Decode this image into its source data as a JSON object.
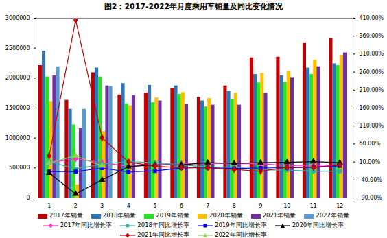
{
  "chart_data": {
    "type": "bar",
    "title": "图2：2017-2022年月度乘用车销量及同比变化情况",
    "categories": [
      "1",
      "2",
      "3",
      "4",
      "5",
      "6",
      "7",
      "8",
      "9",
      "10",
      "11",
      "12"
    ],
    "ylim": [
      0,
      3000000
    ],
    "yticks": [
      0,
      500000,
      1000000,
      1500000,
      2000000,
      2500000,
      3000000
    ],
    "y2lim": [
      -90,
      410
    ],
    "y2ticks": [
      {
        "value": -90,
        "label": "-90.00%"
      },
      {
        "value": -40,
        "label": "-40.00%"
      },
      {
        "value": 10,
        "label": "10.00%"
      },
      {
        "value": 60,
        "label": "60.00%"
      },
      {
        "value": 110,
        "label": "110.00%"
      },
      {
        "value": 160,
        "label": "160.00%"
      },
      {
        "value": 210,
        "label": "210.00%"
      },
      {
        "value": 260,
        "label": "260.00%"
      },
      {
        "value": 310,
        "label": "310.00%"
      },
      {
        "value": 360,
        "label": "360.00%"
      },
      {
        "value": 410,
        "label": "410.00%"
      }
    ],
    "legend": "bottom",
    "series": [
      {
        "name": "2017年销量",
        "type": "bar",
        "color": "#c00000",
        "values": [
          2210000,
          1630000,
          2090000,
          1720000,
          1750000,
          1830000,
          1680000,
          1870000,
          2340000,
          2350000,
          2590000,
          2660000
        ]
      },
      {
        "name": "2018年销量",
        "type": "bar",
        "color": "#2e75b6",
        "values": [
          2450000,
          1480000,
          2170000,
          1910000,
          1880000,
          1870000,
          1620000,
          1780000,
          2060000,
          2040000,
          2170000,
          2240000
        ]
      },
      {
        "name": "2019年销量",
        "type": "bar",
        "color": "#22e622",
        "values": [
          2020000,
          1220000,
          2020000,
          1570000,
          1590000,
          1730000,
          1520000,
          1650000,
          1920000,
          1930000,
          2060000,
          2210000
        ]
      },
      {
        "name": "2020年销量",
        "type": "bar",
        "color": "#ffc000",
        "values": [
          1610000,
          220000,
          1110000,
          1540000,
          1670000,
          1760000,
          1660000,
          1750000,
          2080000,
          2110000,
          2300000,
          2380000
        ]
      },
      {
        "name": "2021年销量",
        "type": "bar",
        "color": "#7030a0",
        "values": [
          2040000,
          1160000,
          1870000,
          1710000,
          1620000,
          1560000,
          1550000,
          1550000,
          1750000,
          2010000,
          2190000,
          2420000
        ]
      },
      {
        "name": "2022年销量",
        "type": "bar",
        "color": "#5b9bd5",
        "values": [
          2190000,
          1480000,
          1860000,
          null,
          null,
          null,
          null,
          null,
          null,
          null,
          null,
          null
        ]
      },
      {
        "name": "2017年同比增长率",
        "type": "line",
        "axis": "y2",
        "color": "#ff33cc",
        "marker": "diamond",
        "values": [
          8,
          19,
          8,
          -2,
          2,
          5,
          6,
          5,
          5,
          0,
          1,
          2
        ]
      },
      {
        "name": "2018年同比增长率",
        "type": "line",
        "axis": "y2",
        "color": "#2fb2a0",
        "marker": "circle",
        "values": [
          11,
          -9,
          4,
          11,
          8,
          2,
          -4,
          -5,
          -12,
          -13,
          -16,
          -16
        ]
      },
      {
        "name": "2019年同比增长率",
        "type": "line",
        "axis": "y2",
        "color": "#0000ff",
        "marker": "square",
        "values": [
          -17,
          -17,
          -7,
          -18,
          -15,
          -7,
          -6,
          -8,
          -7,
          -6,
          -5,
          -1
        ]
      },
      {
        "name": "2020年同比增长率",
        "type": "line",
        "axis": "y2",
        "color": "#000000",
        "marker": "triangle",
        "values": [
          -21,
          -79,
          -40,
          -3,
          2,
          2,
          8,
          6,
          8,
          9,
          11,
          8
        ]
      },
      {
        "name": "2021年同比增长率",
        "type": "line",
        "axis": "y2",
        "color": "#c00000",
        "marker": "diamond",
        "values": [
          27,
          405,
          77,
          10,
          -2,
          -6,
          -6,
          -11,
          -16,
          -5,
          -5,
          2
        ]
      },
      {
        "name": "2022年同比增长率",
        "type": "line",
        "axis": "y2",
        "color": "#92d050",
        "marker": "triangle",
        "values": [
          7,
          27,
          -1,
          null,
          null,
          null,
          null,
          null,
          null,
          null,
          null,
          null
        ]
      }
    ]
  }
}
